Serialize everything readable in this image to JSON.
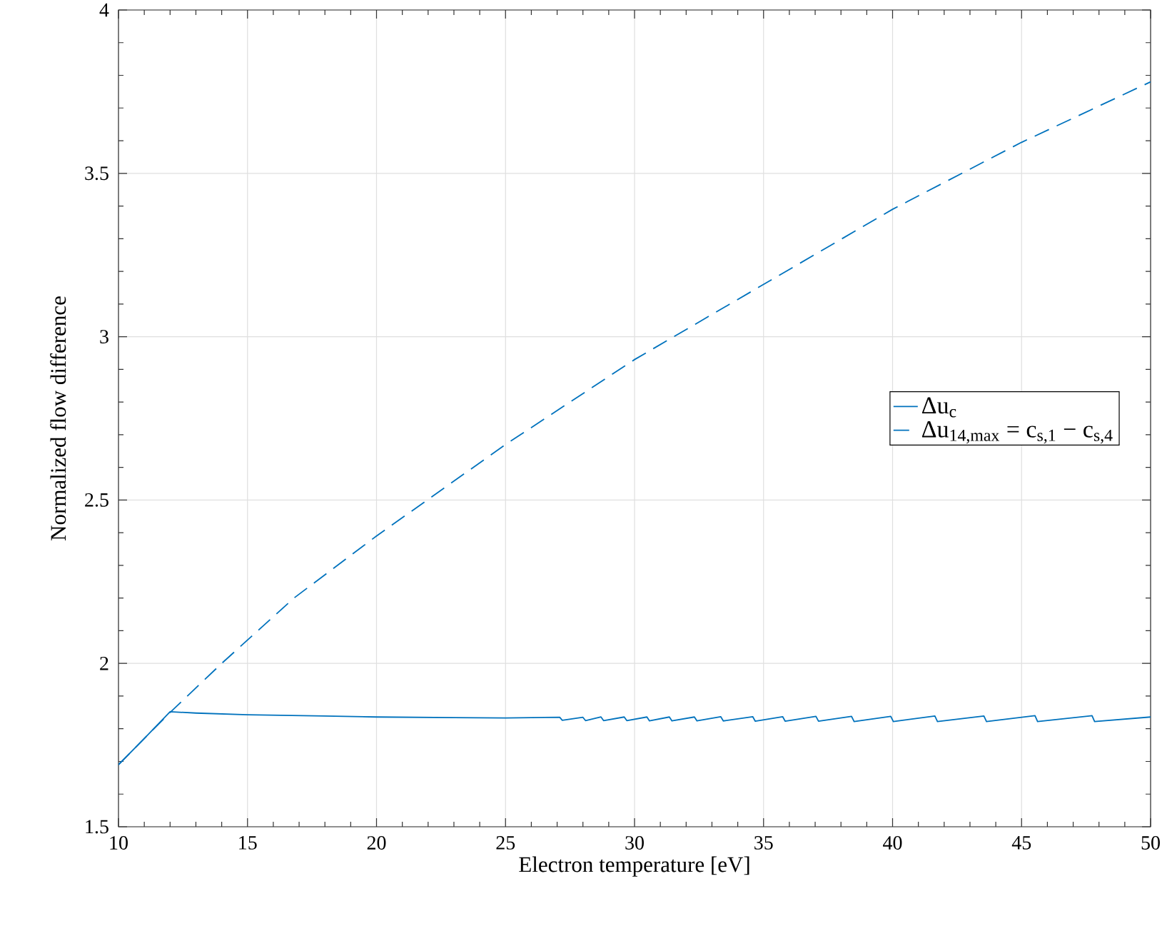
{
  "chart_data": {
    "type": "line",
    "xlabel": "Electron temperature [eV]",
    "ylabel": "Normalized flow difference",
    "xlim": [
      10,
      50
    ],
    "ylim": [
      1.5,
      4
    ],
    "xticks": [
      10,
      15,
      20,
      25,
      30,
      35,
      40,
      45,
      50
    ],
    "yticks": [
      1.5,
      2,
      2.5,
      3,
      3.5,
      4
    ],
    "grid": true,
    "legend": "right",
    "series": [
      {
        "name": "Δu$_{c}$",
        "color": "#0072bd",
        "line_style": "solid",
        "x": [
          10,
          11,
          12,
          13,
          15,
          18,
          20,
          23,
          25,
          27.1,
          27.2,
          28.0,
          28.1,
          28.7,
          28.8,
          29.6,
          29.7,
          30.48,
          30.58,
          31.35,
          31.45,
          32.32,
          32.42,
          33.34,
          33.44,
          34.58,
          34.68,
          35.74,
          35.84,
          37.03,
          37.13,
          38.41,
          38.51,
          39.93,
          40.03,
          41.64,
          41.74,
          43.54,
          43.64,
          45.52,
          45.62,
          47.73,
          47.83,
          50
        ],
        "values": [
          1.69,
          1.77,
          1.852,
          1.848,
          1.843,
          1.839,
          1.836,
          1.834,
          1.833,
          1.835,
          1.826,
          1.835,
          1.825,
          1.836,
          1.825,
          1.836,
          1.825,
          1.836,
          1.824,
          1.836,
          1.824,
          1.836,
          1.824,
          1.837,
          1.824,
          1.837,
          1.823,
          1.837,
          1.823,
          1.838,
          1.823,
          1.838,
          1.822,
          1.838,
          1.822,
          1.839,
          1.822,
          1.839,
          1.822,
          1.84,
          1.822,
          1.84,
          1.822,
          1.836
        ]
      },
      {
        "name": "Δu$_{14,max}$ = c$_{s,1}$ − c$_{s,4}$",
        "color": "#0072bd",
        "line_style": "dashed",
        "x": [
          10,
          11,
          12,
          14,
          16.8,
          20,
          25,
          30,
          35,
          40,
          45,
          50
        ],
        "values": [
          1.69,
          1.77,
          1.85,
          2.0,
          2.2,
          2.39,
          2.67,
          2.93,
          3.16,
          3.39,
          3.595,
          3.78
        ]
      }
    ]
  }
}
